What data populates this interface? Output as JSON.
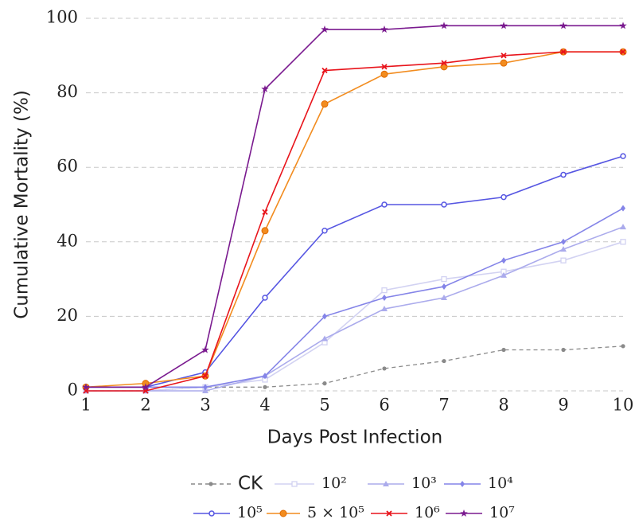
{
  "chart_data": {
    "type": "line",
    "xlabel": "Days Post Infection",
    "ylabel": "Cumulative Mortality (%)",
    "x": [
      1,
      2,
      3,
      4,
      5,
      6,
      7,
      8,
      9,
      10
    ],
    "xlim": [
      1,
      10
    ],
    "xticks": [
      1,
      2,
      3,
      4,
      5,
      6,
      7,
      8,
      9,
      10
    ],
    "ylim": [
      0,
      100
    ],
    "yticks": [
      0,
      20,
      40,
      60,
      80,
      100
    ],
    "grid": true,
    "legend": "bottom",
    "series": [
      {
        "name": "CK",
        "color": "#8a8a8a",
        "marker": "dot",
        "linestyle": "dashed",
        "values": [
          0,
          0,
          1,
          1,
          2,
          6,
          8,
          11,
          11,
          12
        ]
      },
      {
        "name": "10²",
        "color": "#d2d2f2",
        "marker": "square",
        "linestyle": "solid",
        "values": [
          0,
          0,
          1,
          3,
          13,
          27,
          30,
          32,
          35,
          40
        ]
      },
      {
        "name": "10³",
        "color": "#ababec",
        "marker": "triangle",
        "linestyle": "solid",
        "values": [
          0,
          0,
          0,
          4,
          14,
          22,
          25,
          31,
          38,
          44
        ]
      },
      {
        "name": "10⁴",
        "color": "#8484e8",
        "marker": "diamond",
        "linestyle": "solid",
        "values": [
          1,
          1,
          1,
          4,
          20,
          25,
          28,
          35,
          40,
          49
        ]
      },
      {
        "name": "10⁵",
        "color": "#5656e2",
        "marker": "circle",
        "linestyle": "solid",
        "values": [
          1,
          1,
          5,
          25,
          43,
          50,
          50,
          52,
          58,
          63
        ]
      },
      {
        "name": "5 × 10⁵",
        "color": "#f28c1f",
        "marker": "bigcircle",
        "linestyle": "solid",
        "values": [
          1,
          2,
          4,
          43,
          77,
          85,
          87,
          88,
          91,
          91
        ]
      },
      {
        "name": "10⁶",
        "color": "#e8141b",
        "marker": "cross",
        "linestyle": "solid",
        "values": [
          0,
          0,
          4,
          48,
          86,
          87,
          88,
          90,
          91,
          91
        ]
      },
      {
        "name": "10⁷",
        "color": "#7a1a8f",
        "marker": "star",
        "linestyle": "solid",
        "values": [
          1,
          1,
          11,
          81,
          97,
          97,
          98,
          98,
          98,
          98
        ]
      }
    ]
  }
}
